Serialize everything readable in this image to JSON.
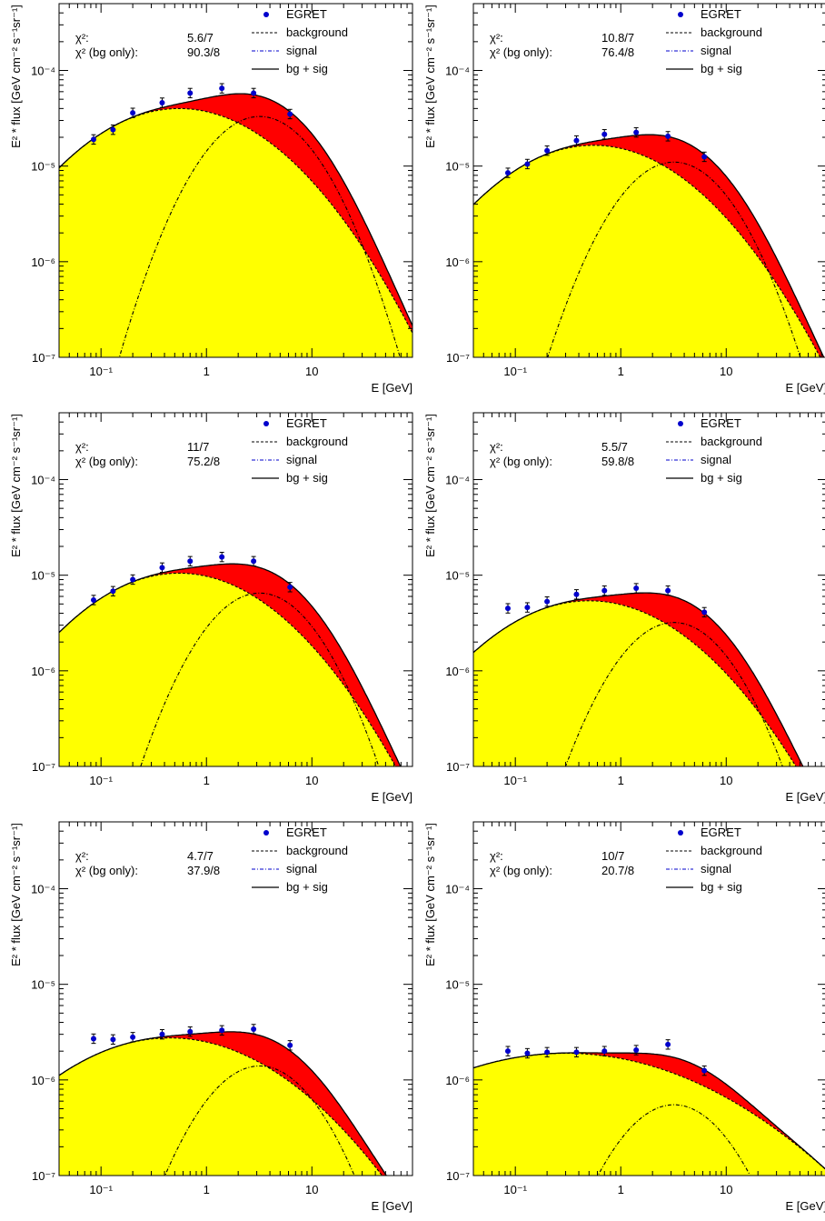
{
  "figure": {
    "colors": {
      "background_fill": "#ffff00",
      "excess_fill": "#ff0000",
      "data_points": "#0000cc",
      "signal_line": "#0000cc",
      "frame": "#000000"
    }
  },
  "chart_data": [
    {
      "type": "line",
      "xscale": "log",
      "yscale": "log",
      "xlim": [
        0.04,
        90
      ],
      "ylim": [
        1e-07,
        0.0005
      ],
      "xlabel": "E [GeV]",
      "ylabel": "E² * flux [GeV cm⁻² s⁻¹sr⁻¹]",
      "xticks": [
        "10⁻¹",
        "1",
        "10"
      ],
      "yticks": [
        "10⁻⁷",
        "10⁻⁶",
        "10⁻⁵",
        "10⁻⁴"
      ],
      "chi2_label": "χ²:",
      "chi2_value": "5.6/7",
      "chi2_bg_label": "χ² (bg only):",
      "chi2_bg_value": "90.3/8",
      "legend": [
        "EGRET",
        "background",
        "signal",
        "bg + sig"
      ],
      "legend_position": "top-right",
      "egret_x": [
        0.085,
        0.13,
        0.2,
        0.38,
        0.7,
        1.4,
        2.8,
        6.2
      ],
      "egret_y": [
        1.9e-05,
        2.4e-05,
        3.6e-05,
        4.6e-05,
        5.8e-05,
        6.5e-05,
        5.8e-05,
        3.5e-05
      ],
      "background": {
        "peak": 4e-05,
        "peak_energy": 0.55,
        "width": 1.55
      },
      "signal": {
        "peak": 3.3e-05,
        "peak_energy": 3.2,
        "width": 0.9
      }
    },
    {
      "type": "line",
      "xscale": "log",
      "yscale": "log",
      "xlim": [
        0.04,
        90
      ],
      "ylim": [
        1e-07,
        0.0005
      ],
      "xlabel": "E [GeV]",
      "ylabel": "E² * flux [GeV cm⁻² s⁻¹sr⁻¹]",
      "xticks": [
        "10⁻¹",
        "1",
        "10"
      ],
      "yticks": [
        "10⁻⁷",
        "10⁻⁶",
        "10⁻⁵",
        "10⁻⁴"
      ],
      "chi2_label": "χ²:",
      "chi2_value": "10.8/7",
      "chi2_bg_label": "χ² (bg only):",
      "chi2_bg_value": "76.4/8",
      "legend": [
        "EGRET",
        "background",
        "signal",
        "bg + sig"
      ],
      "legend_position": "top-right",
      "egret_x": [
        0.085,
        0.13,
        0.2,
        0.38,
        0.7,
        1.4,
        2.8,
        6.2
      ],
      "egret_y": [
        8.5e-06,
        1.05e-05,
        1.45e-05,
        1.85e-05,
        2.15e-05,
        2.25e-05,
        2.05e-05,
        1.25e-05
      ],
      "background": {
        "peak": 1.65e-05,
        "peak_energy": 0.55,
        "width": 1.55
      },
      "signal": {
        "peak": 1.1e-05,
        "peak_energy": 3.2,
        "width": 0.9
      }
    },
    {
      "type": "line",
      "xscale": "log",
      "yscale": "log",
      "xlim": [
        0.04,
        90
      ],
      "ylim": [
        1e-07,
        0.0005
      ],
      "xlabel": "E [GeV]",
      "ylabel": "E² * flux [GeV cm⁻² s⁻¹sr⁻¹]",
      "xticks": [
        "10⁻¹",
        "1",
        "10"
      ],
      "yticks": [
        "10⁻⁷",
        "10⁻⁶",
        "10⁻⁵",
        "10⁻⁴"
      ],
      "chi2_label": "χ²:",
      "chi2_value": "11/7",
      "chi2_bg_label": "χ² (bg only):",
      "chi2_bg_value": "75.2/8",
      "legend": [
        "EGRET",
        "background",
        "signal",
        "bg + sig"
      ],
      "legend_position": "top-right",
      "egret_x": [
        0.085,
        0.13,
        0.2,
        0.38,
        0.7,
        1.4,
        2.8,
        6.2
      ],
      "egret_y": [
        5.5e-06,
        6.8e-06,
        9e-06,
        1.2e-05,
        1.4e-05,
        1.55e-05,
        1.4e-05,
        7.5e-06
      ],
      "background": {
        "peak": 1.05e-05,
        "peak_energy": 0.55,
        "width": 1.55
      },
      "signal": {
        "peak": 6.5e-06,
        "peak_energy": 3.2,
        "width": 0.9
      }
    },
    {
      "type": "line",
      "xscale": "log",
      "yscale": "log",
      "xlim": [
        0.04,
        90
      ],
      "ylim": [
        1e-07,
        0.0005
      ],
      "xlabel": "E [GeV]",
      "ylabel": "E² * flux [GeV cm⁻² s⁻¹sr⁻¹]",
      "xticks": [
        "10⁻¹",
        "1",
        "10"
      ],
      "yticks": [
        "10⁻⁷",
        "10⁻⁶",
        "10⁻⁵",
        "10⁻⁴"
      ],
      "chi2_label": "χ²:",
      "chi2_value": "5.5/7",
      "chi2_bg_label": "χ² (bg only):",
      "chi2_bg_value": "59.8/8",
      "legend": [
        "EGRET",
        "background",
        "signal",
        "bg + sig"
      ],
      "legend_position": "top-right",
      "egret_x": [
        0.085,
        0.13,
        0.2,
        0.38,
        0.7,
        1.4,
        2.8,
        6.2
      ],
      "egret_y": [
        4.5e-06,
        4.6e-06,
        5.3e-06,
        6.3e-06,
        6.9e-06,
        7.3e-06,
        6.9e-06,
        4.1e-06
      ],
      "background": {
        "peak": 5.4e-06,
        "peak_energy": 0.5,
        "width": 1.6
      },
      "signal": {
        "peak": 3.2e-06,
        "peak_energy": 3.2,
        "width": 0.9
      }
    },
    {
      "type": "line",
      "xscale": "log",
      "yscale": "log",
      "xlim": [
        0.04,
        90
      ],
      "ylim": [
        1e-07,
        0.0005
      ],
      "xlabel": "E [GeV]",
      "ylabel": "E² * flux [GeV cm⁻² s⁻¹sr⁻¹]",
      "xticks": [
        "10⁻¹",
        "1",
        "10"
      ],
      "yticks": [
        "10⁻⁷",
        "10⁻⁶",
        "10⁻⁵",
        "10⁻⁴"
      ],
      "chi2_label": "χ²:",
      "chi2_value": "4.7/7",
      "chi2_bg_label": "χ² (bg only):",
      "chi2_bg_value": "37.9/8",
      "legend": [
        "EGRET",
        "background",
        "signal",
        "bg + sig"
      ],
      "legend_position": "top-right",
      "egret_x": [
        0.085,
        0.13,
        0.2,
        0.38,
        0.7,
        1.4,
        2.8,
        6.2
      ],
      "egret_y": [
        2.7e-06,
        2.65e-06,
        2.8e-06,
        3e-06,
        3.2e-06,
        3.3e-06,
        3.4e-06,
        2.3e-06
      ],
      "background": {
        "peak": 2.75e-06,
        "peak_energy": 0.45,
        "width": 1.8
      },
      "signal": {
        "peak": 1.4e-06,
        "peak_energy": 3.2,
        "width": 0.9
      }
    },
    {
      "type": "line",
      "xscale": "log",
      "yscale": "log",
      "xlim": [
        0.04,
        90
      ],
      "ylim": [
        1e-07,
        0.0005
      ],
      "xlabel": "E [GeV]",
      "ylabel": "E² * flux [GeV cm⁻² s⁻¹sr⁻¹]",
      "xticks": [
        "10⁻¹",
        "1",
        "10"
      ],
      "yticks": [
        "10⁻⁷",
        "10⁻⁶",
        "10⁻⁵",
        "10⁻⁴"
      ],
      "chi2_label": "χ²:",
      "chi2_value": "10/7",
      "chi2_bg_label": "χ² (bg only):",
      "chi2_bg_value": "20.7/8",
      "legend": [
        "EGRET",
        "background",
        "signal",
        "bg + sig"
      ],
      "legend_position": "top-right",
      "egret_x": [
        0.085,
        0.13,
        0.2,
        0.38,
        0.7,
        1.4,
        2.8,
        6.2
      ],
      "egret_y": [
        2e-06,
        1.9e-06,
        1.95e-06,
        1.95e-06,
        2e-06,
        2.05e-06,
        2.35e-06,
        1.25e-06
      ],
      "background": {
        "peak": 1.9e-06,
        "peak_energy": 0.3,
        "width": 2.4
      },
      "signal": {
        "peak": 5.5e-07,
        "peak_energy": 3.2,
        "width": 0.9
      }
    }
  ]
}
